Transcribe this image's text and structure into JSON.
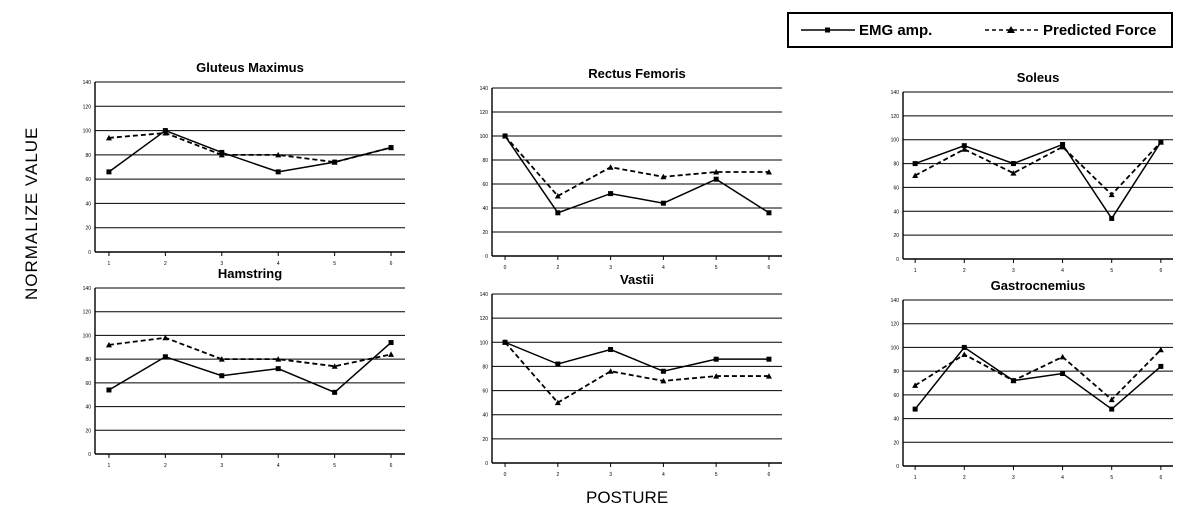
{
  "ylabel": "NORMALIZE VALUE",
  "xlabel": "POSTURE",
  "legend": {
    "emg": "EMG amp.",
    "force": "Predicted Force"
  },
  "colors": {
    "ink": "#000000",
    "grid": "#000000"
  },
  "chart_data": [
    {
      "type": "line",
      "title": "Gluteus Maximus",
      "legend_position": "top-right",
      "grid": true,
      "x": [
        "1",
        "2",
        "3",
        "4",
        "5",
        "6"
      ],
      "xcategories": [
        "1",
        "2",
        "3",
        "4",
        "5",
        "6"
      ],
      "yticks": [
        0,
        20,
        40,
        60,
        80,
        100,
        120,
        140
      ],
      "ylim": [
        0,
        140
      ],
      "series": [
        {
          "name": "EMG amp.",
          "values": [
            66,
            100,
            82,
            66,
            74,
            86
          ]
        },
        {
          "name": "Predicted Force",
          "values": [
            94,
            98,
            80,
            80,
            74,
            86
          ]
        }
      ]
    },
    {
      "type": "line",
      "title": "Rectus Femoris",
      "legend_position": "top-right",
      "grid": true,
      "x": [
        "0",
        "2",
        "3",
        "4",
        "5",
        "6"
      ],
      "xcategories": [
        "0",
        "2",
        "3",
        "4",
        "5",
        "6"
      ],
      "yticks": [
        0,
        20,
        40,
        60,
        80,
        100,
        120,
        140
      ],
      "ylim": [
        0,
        140
      ],
      "series": [
        {
          "name": "EMG amp.",
          "values": [
            100,
            36,
            52,
            44,
            64,
            36
          ]
        },
        {
          "name": "Predicted Force",
          "values": [
            100,
            50,
            74,
            66,
            70,
            70
          ]
        }
      ]
    },
    {
      "type": "line",
      "title": "Soleus",
      "legend_position": "top-right",
      "grid": true,
      "x": [
        "1",
        "2",
        "3",
        "4",
        "5",
        "6"
      ],
      "xcategories": [
        "1",
        "2",
        "3",
        "4",
        "5",
        "6"
      ],
      "yticks": [
        0,
        20,
        40,
        60,
        80,
        100,
        120,
        140
      ],
      "ylim": [
        0,
        140
      ],
      "series": [
        {
          "name": "EMG amp.",
          "values": [
            80,
            95,
            80,
            96,
            34,
            98
          ]
        },
        {
          "name": "Predicted Force",
          "values": [
            70,
            92,
            72,
            94,
            54,
            98
          ]
        }
      ]
    },
    {
      "type": "line",
      "title": "Hamstring",
      "legend_position": "top-right",
      "grid": true,
      "x": [
        "1",
        "2",
        "3",
        "4",
        "5",
        "6"
      ],
      "xcategories": [
        "1",
        "2",
        "3",
        "4",
        "5",
        "6"
      ],
      "yticks": [
        0,
        20,
        40,
        60,
        80,
        100,
        120,
        140
      ],
      "ylim": [
        0,
        140
      ],
      "series": [
        {
          "name": "EMG amp.",
          "values": [
            54,
            82,
            66,
            72,
            52,
            94
          ]
        },
        {
          "name": "Predicted Force",
          "values": [
            92,
            98,
            80,
            80,
            74,
            84
          ]
        }
      ]
    },
    {
      "type": "line",
      "title": "Vastii",
      "legend_position": "top-right",
      "grid": true,
      "x": [
        "0",
        "2",
        "3",
        "4",
        "5",
        "6"
      ],
      "xcategories": [
        "0",
        "2",
        "3",
        "4",
        "5",
        "6"
      ],
      "yticks": [
        0,
        20,
        40,
        60,
        80,
        100,
        120,
        140
      ],
      "ylim": [
        0,
        140
      ],
      "series": [
        {
          "name": "EMG amp.",
          "values": [
            100,
            82,
            94,
            76,
            86,
            86
          ]
        },
        {
          "name": "Predicted Force",
          "values": [
            100,
            50,
            76,
            68,
            72,
            72
          ]
        }
      ]
    },
    {
      "type": "line",
      "title": "Gastrocnemius",
      "legend_position": "top-right",
      "grid": true,
      "x": [
        "1",
        "2",
        "3",
        "4",
        "5",
        "6"
      ],
      "xcategories": [
        "1",
        "2",
        "3",
        "4",
        "5",
        "6"
      ],
      "yticks": [
        0,
        20,
        40,
        60,
        80,
        100,
        120,
        140
      ],
      "ylim": [
        0,
        140
      ],
      "series": [
        {
          "name": "EMG amp.",
          "values": [
            48,
            100,
            72,
            78,
            48,
            84
          ]
        },
        {
          "name": "Predicted Force",
          "values": [
            68,
            94,
            72,
            92,
            56,
            98
          ]
        }
      ]
    }
  ]
}
